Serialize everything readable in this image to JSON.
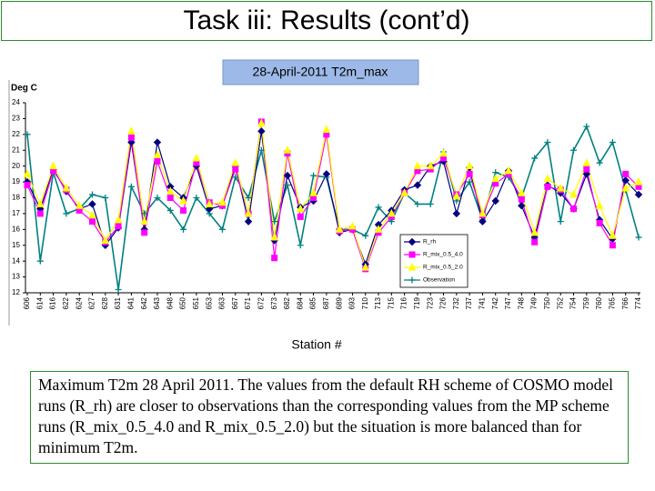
{
  "slide": {
    "title": "Task iii: Results (cont’d)",
    "caption": "Maximum T2m 28 April 2011. The values from the default RH scheme of COSMO model runs (R_rh) are closer to observations than the corresponding values from the MP scheme runs (R_mix_0.5_4.0 and R_mix_0.5_2.0) but the situation is more balanced than for minimum T2m."
  },
  "chart_data": {
    "type": "line",
    "title": "28-April-2011  T2m_max",
    "y_label": "Deg C",
    "x_label": "Station #",
    "categories": [
      "606",
      "614",
      "616",
      "622",
      "624",
      "627",
      "628",
      "631",
      "641",
      "642",
      "643",
      "648",
      "650",
      "651",
      "653",
      "663",
      "667",
      "671",
      "672",
      "673",
      "682",
      "684",
      "685",
      "687",
      "689",
      "693",
      "710",
      "713",
      "715",
      "716",
      "719",
      "723",
      "726",
      "732",
      "737",
      "741",
      "742",
      "747",
      "748",
      "749",
      "750",
      "752",
      "754",
      "759",
      "760",
      "765",
      "766",
      "774"
    ],
    "ylim": [
      12,
      24
    ],
    "yticks": [
      12,
      13,
      14,
      15,
      16,
      17,
      18,
      19,
      20,
      21,
      22,
      23,
      24
    ],
    "series": [
      {
        "name": "R_rh",
        "color": "#000080",
        "marker": "diamond",
        "values": [
          19,
          17.3,
          19.8,
          18.4,
          17.3,
          17.6,
          15,
          16.1,
          21.5,
          16,
          21.5,
          18.7,
          18,
          20,
          17.3,
          17.5,
          20,
          16.5,
          22.2,
          15.3,
          19.4,
          17.4,
          17.8,
          19.5,
          15.8,
          16,
          13.8,
          16.3,
          17.2,
          18.5,
          18.8,
          20,
          20.3,
          17,
          19.9,
          16.5,
          17.8,
          19.7,
          17.5,
          15.5,
          18.8,
          18.3,
          17.3,
          19.5,
          16.6,
          15.4,
          19.1,
          18.2
        ]
      },
      {
        "name": "R_mix_0.5_4.0",
        "color": "#ff00ff",
        "marker": "square",
        "values": [
          18.8,
          17,
          19.7,
          18.5,
          17.2,
          16.5,
          15.2,
          16.2,
          21.8,
          15.8,
          20.3,
          18,
          17.2,
          20.2,
          17.7,
          17.5,
          19.8,
          17,
          22.8,
          14.2,
          20.8,
          16.8,
          18,
          22,
          15.9,
          16,
          13.5,
          15.8,
          16.8,
          18.3,
          19.7,
          19.8,
          20.5,
          18.2,
          19.5,
          16.9,
          18.9,
          19.5,
          17.9,
          15.2,
          18.7,
          18.5,
          17.3,
          19.8,
          16.4,
          15,
          19.5,
          18.7
        ]
      },
      {
        "name": "R_mix_0.5_2.0",
        "color": "#ffff00",
        "marker": "triangle",
        "values": [
          19.5,
          17.6,
          20,
          18.6,
          17.5,
          16.9,
          15.3,
          16.6,
          22.2,
          16.5,
          20.7,
          18.4,
          17.8,
          20.5,
          17.6,
          17.7,
          20.2,
          17,
          22.7,
          15.5,
          21,
          17.3,
          18.3,
          22.3,
          16,
          16.2,
          13.6,
          16,
          17,
          18.3,
          20,
          20,
          20.8,
          18.1,
          20,
          17,
          19.2,
          19.7,
          18.3,
          15.8,
          19.2,
          18.6,
          18.2,
          20.2,
          17.5,
          15.6,
          18.6,
          19
        ]
      },
      {
        "name": "Observation",
        "color": "#008080",
        "marker": "plus",
        "values": [
          22,
          14,
          19.6,
          17,
          17.3,
          18.2,
          18,
          12.2,
          18.7,
          17,
          18,
          17.2,
          16,
          18,
          17,
          16,
          19.3,
          18,
          21,
          16.5,
          18.8,
          15,
          19.4,
          19.3,
          16,
          16,
          15.6,
          17.4,
          16.5,
          18.3,
          17.6,
          17.6,
          20.9,
          17.8,
          19,
          16.6,
          19.6,
          19.3,
          18,
          20.5,
          21.5,
          16.5,
          21,
          22.5,
          20.2,
          21.5,
          18.5,
          15.5
        ]
      }
    ]
  }
}
